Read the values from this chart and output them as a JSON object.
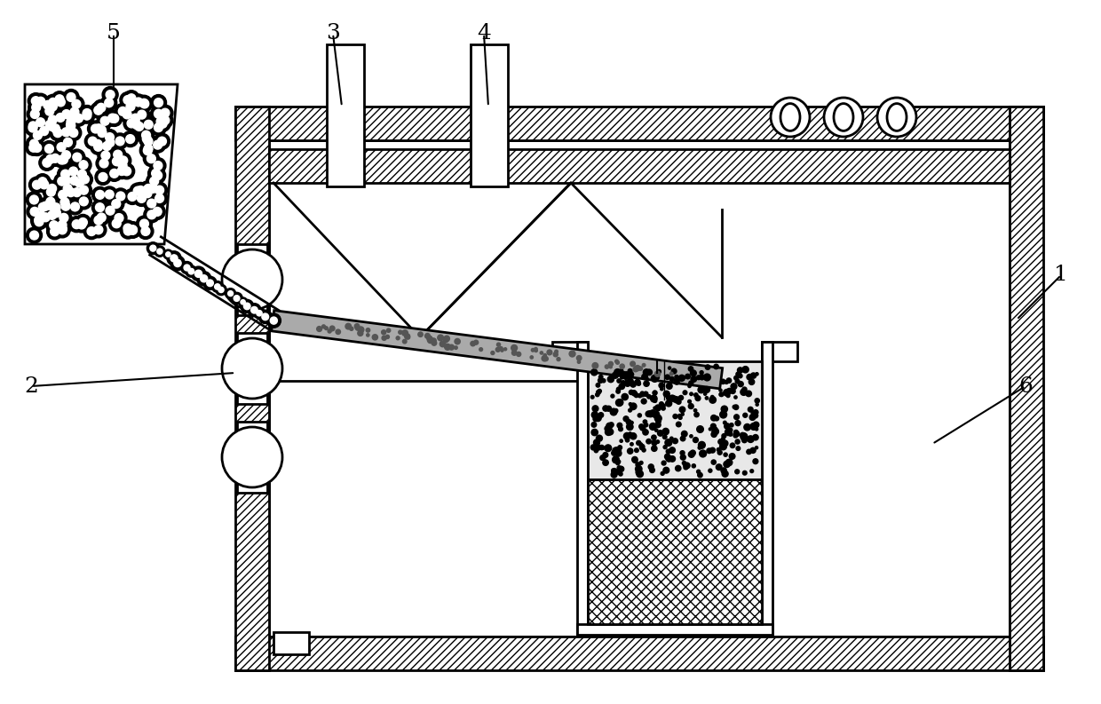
{
  "bg_color": "#ffffff",
  "line_color": "#000000",
  "label_fontsize": 18,
  "figsize": [
    12.4,
    7.93
  ],
  "dpi": 100
}
